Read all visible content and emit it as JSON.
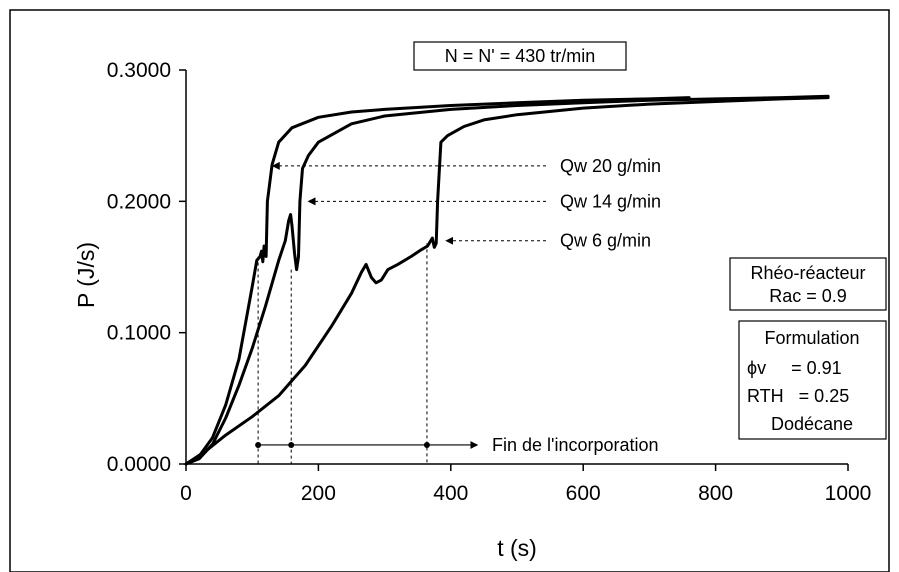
{
  "chart_data": {
    "type": "line",
    "title": "N = N' = 430 tr/min",
    "xlabel": "t (s)",
    "ylabel": "P (J/s)",
    "xlim": [
      0,
      1000
    ],
    "ylim": [
      0,
      0.3
    ],
    "x_ticks": [
      "0",
      "200",
      "400",
      "600",
      "800",
      "1000"
    ],
    "y_ticks": [
      "0.0000",
      "0.1000",
      "0.2000",
      "0.3000"
    ],
    "grid": false,
    "series": [
      {
        "name": "Qw 20 g/min",
        "color": "#000000",
        "points": [
          [
            0,
            0
          ],
          [
            20,
            0.006
          ],
          [
            40,
            0.02
          ],
          [
            60,
            0.045
          ],
          [
            80,
            0.08
          ],
          [
            100,
            0.135
          ],
          [
            107,
            0.155
          ],
          [
            112,
            0.158
          ],
          [
            114,
            0.162
          ],
          [
            116,
            0.154
          ],
          [
            118,
            0.166
          ],
          [
            121,
            0.158
          ],
          [
            123,
            0.2
          ],
          [
            130,
            0.228
          ],
          [
            140,
            0.245
          ],
          [
            160,
            0.256
          ],
          [
            200,
            0.264
          ],
          [
            250,
            0.268
          ],
          [
            300,
            0.27
          ],
          [
            400,
            0.273
          ],
          [
            500,
            0.275
          ],
          [
            600,
            0.277
          ],
          [
            700,
            0.278
          ],
          [
            760,
            0.279
          ]
        ]
      },
      {
        "name": "Qw 14 g/min",
        "color": "#000000",
        "points": [
          [
            0,
            0
          ],
          [
            20,
            0.004
          ],
          [
            40,
            0.015
          ],
          [
            60,
            0.035
          ],
          [
            80,
            0.06
          ],
          [
            100,
            0.088
          ],
          [
            120,
            0.12
          ],
          [
            140,
            0.155
          ],
          [
            150,
            0.17
          ],
          [
            155,
            0.185
          ],
          [
            158,
            0.19
          ],
          [
            160,
            0.182
          ],
          [
            164,
            0.16
          ],
          [
            167,
            0.148
          ],
          [
            170,
            0.158
          ],
          [
            172,
            0.2
          ],
          [
            176,
            0.225
          ],
          [
            185,
            0.235
          ],
          [
            200,
            0.245
          ],
          [
            250,
            0.259
          ],
          [
            300,
            0.265
          ],
          [
            400,
            0.27
          ],
          [
            500,
            0.273
          ],
          [
            600,
            0.275
          ],
          [
            700,
            0.277
          ],
          [
            800,
            0.278
          ],
          [
            900,
            0.279
          ],
          [
            970,
            0.28
          ]
        ]
      },
      {
        "name": "Qw 6 g/min",
        "color": "#000000",
        "points": [
          [
            0,
            0
          ],
          [
            30,
            0.01
          ],
          [
            60,
            0.022
          ],
          [
            100,
            0.036
          ],
          [
            140,
            0.052
          ],
          [
            180,
            0.075
          ],
          [
            220,
            0.105
          ],
          [
            250,
            0.13
          ],
          [
            265,
            0.146
          ],
          [
            272,
            0.152
          ],
          [
            280,
            0.142
          ],
          [
            287,
            0.138
          ],
          [
            295,
            0.14
          ],
          [
            305,
            0.148
          ],
          [
            320,
            0.152
          ],
          [
            340,
            0.158
          ],
          [
            355,
            0.163
          ],
          [
            365,
            0.166
          ],
          [
            372,
            0.172
          ],
          [
            375,
            0.165
          ],
          [
            378,
            0.168
          ],
          [
            380,
            0.2
          ],
          [
            385,
            0.245
          ],
          [
            395,
            0.25
          ],
          [
            420,
            0.257
          ],
          [
            450,
            0.262
          ],
          [
            500,
            0.266
          ],
          [
            600,
            0.271
          ],
          [
            700,
            0.274
          ],
          [
            800,
            0.276
          ],
          [
            900,
            0.278
          ],
          [
            970,
            0.279
          ]
        ]
      }
    ],
    "annotations": {
      "series_labels": [
        {
          "text": "Qw 20 g/min",
          "target": [
            122,
            0.227
          ],
          "label_y": 0.227
        },
        {
          "text": "Qw 14 g/min",
          "target": [
            176,
            0.2
          ],
          "label_y": 0.2
        },
        {
          "text": "Qw   6 g/min",
          "target": [
            384,
            0.17
          ],
          "label_y": 0.17
        }
      ],
      "incorporation_end": {
        "text": "Fin de l'incorporation",
        "times": [
          118,
          168,
          373
        ],
        "level": 0.0145,
        "arrow_end": 440
      },
      "reactor_box": [
        "Rhéo-réacteur",
        "Rac = 0.9"
      ],
      "formulation_box": [
        "Formulation",
        "ϕv     = 0.91",
        "RTH   = 0.25",
        "Dodécane"
      ]
    }
  }
}
